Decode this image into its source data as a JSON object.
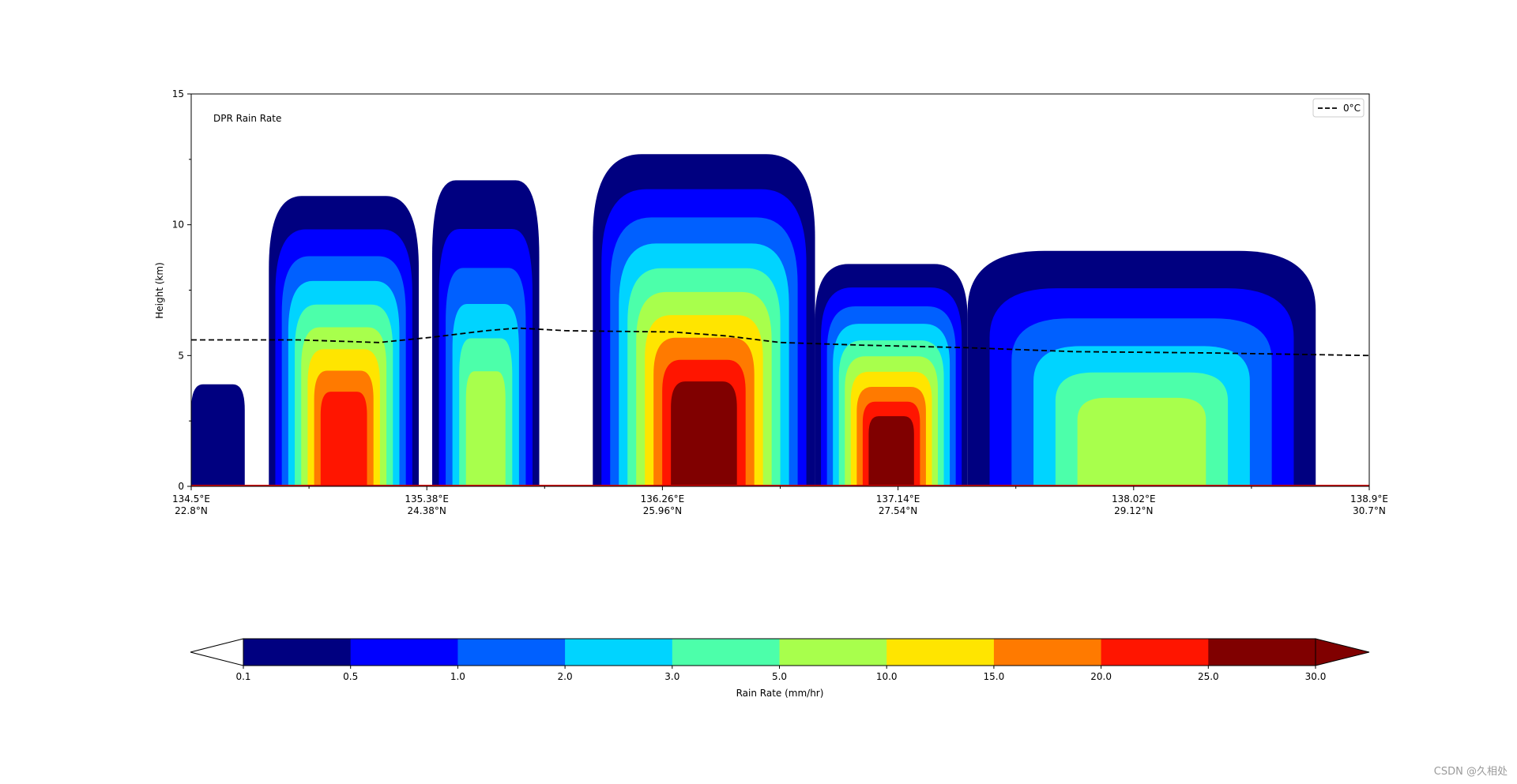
{
  "chart_data": {
    "type": "heatmap",
    "annotation": "DPR Rain Rate",
    "ylabel": "Height (km)",
    "ylim": [
      0,
      15
    ],
    "yticks": [
      "0",
      "5",
      "10",
      "15"
    ],
    "xticks": [
      {
        "lon": "134.5°E",
        "lat": "22.8°N"
      },
      {
        "lon": "135.38°E",
        "lat": "24.38°N"
      },
      {
        "lon": "136.26°E",
        "lat": "25.96°N"
      },
      {
        "lon": "137.14°E",
        "lat": "27.54°N"
      },
      {
        "lon": "138.02°E",
        "lat": "29.12°N"
      },
      {
        "lon": "138.9°E",
        "lat": "30.7°N"
      }
    ],
    "legend": {
      "entry": "0°C",
      "placement": "top-right",
      "style": "dashed"
    },
    "freezing_level_km": [
      {
        "lon": 134.5,
        "h": 5.6
      },
      {
        "lon": 134.9,
        "h": 5.6
      },
      {
        "lon": 135.2,
        "h": 5.5
      },
      {
        "lon": 135.4,
        "h": 5.7
      },
      {
        "lon": 135.6,
        "h": 5.95
      },
      {
        "lon": 135.72,
        "h": 6.05
      },
      {
        "lon": 135.9,
        "h": 5.95
      },
      {
        "lon": 136.3,
        "h": 5.9
      },
      {
        "lon": 136.5,
        "h": 5.75
      },
      {
        "lon": 136.7,
        "h": 5.5
      },
      {
        "lon": 137.0,
        "h": 5.4
      },
      {
        "lon": 137.4,
        "h": 5.3
      },
      {
        "lon": 137.8,
        "h": 5.15
      },
      {
        "lon": 138.3,
        "h": 5.1
      },
      {
        "lon": 138.9,
        "h": 5.0
      }
    ],
    "colorbar": {
      "label": "Rain Rate (mm/hr)",
      "levels": [
        "0.1",
        "0.5",
        "1.0",
        "2.0",
        "3.0",
        "5.0",
        "10.0",
        "15.0",
        "20.0",
        "25.0",
        "30.0"
      ],
      "colors": [
        "#000080",
        "#0000ff",
        "#0060ff",
        "#00d4ff",
        "#4cffaa",
        "#a8ff4c",
        "#ffe500",
        "#ff7a00",
        "#ff1500",
        "#800000"
      ],
      "extend": "both",
      "under_color": "#ffffff",
      "over_color": "#800000"
    },
    "cells": [
      {
        "lon_min": 134.5,
        "lon_max": 134.7,
        "top_km": 3.9,
        "max_level": 0
      },
      {
        "lon_min": 134.79,
        "lon_max": 135.35,
        "top_km": 11.1,
        "max_level": 8
      },
      {
        "lon_min": 135.4,
        "lon_max": 135.8,
        "top_km": 11.7,
        "max_level": 5
      },
      {
        "lon_min": 136.0,
        "lon_max": 136.83,
        "top_km": 12.7,
        "max_level": 9
      },
      {
        "lon_min": 136.83,
        "lon_max": 137.4,
        "top_km": 8.5,
        "max_level": 9
      },
      {
        "lon_min": 137.4,
        "lon_max": 138.7,
        "top_km": 9.0,
        "max_level": 5
      }
    ]
  },
  "watermark": "CSDN @久相处"
}
